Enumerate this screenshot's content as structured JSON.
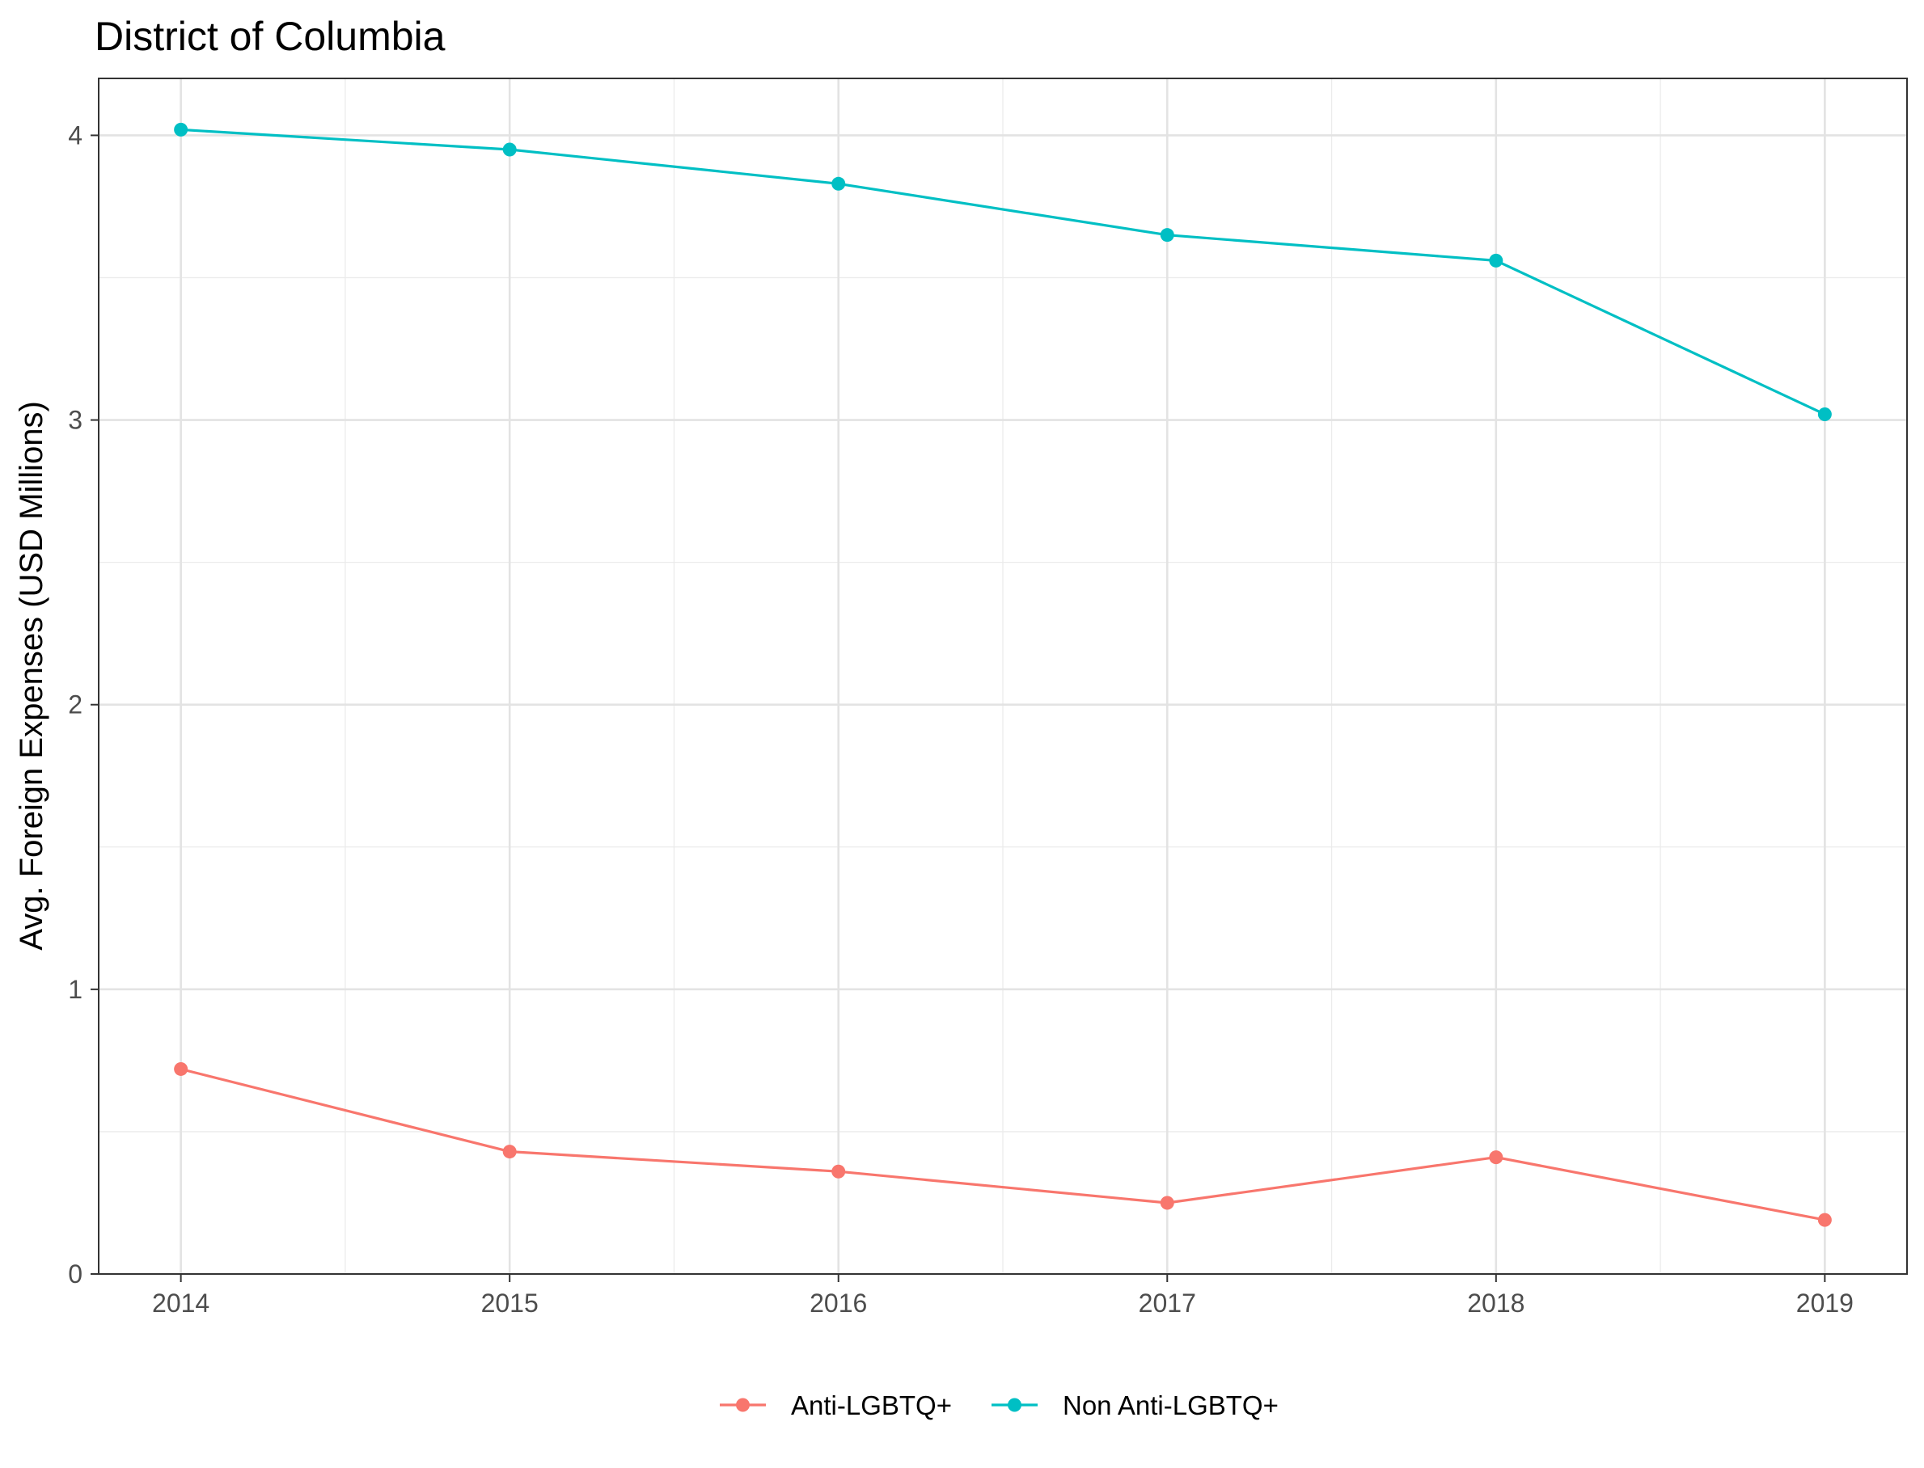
{
  "chart_data": {
    "type": "line",
    "title": "District of Columbia",
    "xlabel": "",
    "ylabel": "Avg. Foreign Expenses (USD Millions)",
    "x": [
      2014,
      2015,
      2016,
      2017,
      2018,
      2019
    ],
    "x_tick_labels": [
      "2014",
      "2015",
      "2016",
      "2017",
      "2018",
      "2019"
    ],
    "xlim": [
      2013.75,
      2019.25
    ],
    "ylim": [
      0,
      4.2
    ],
    "y_ticks": [
      0,
      1,
      2,
      3,
      4
    ],
    "y_tick_labels": [
      "0",
      "1",
      "2",
      "3",
      "4"
    ],
    "grid": true,
    "legend_position": "bottom",
    "series": [
      {
        "name": "Anti-LGBTQ+",
        "color": "#F8766D",
        "values": [
          0.72,
          0.43,
          0.36,
          0.25,
          0.41,
          0.19
        ]
      },
      {
        "name": "Non Anti-LGBTQ+",
        "color": "#00BFC4",
        "values": [
          4.02,
          3.95,
          3.83,
          3.65,
          3.56,
          3.02
        ]
      }
    ]
  }
}
